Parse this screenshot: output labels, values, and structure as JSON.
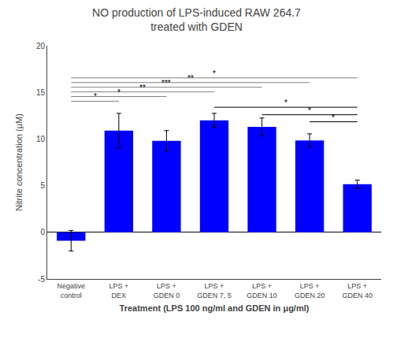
{
  "chart_data": {
    "type": "bar",
    "title": "NO production of LPS-induced RAW 264.7\ntreated with GDEN",
    "xlabel": "Treatment (LPS 100 ng/ml and GDEN in μg/ml)",
    "ylabel": "Nitrite concentration (μM)",
    "categories": [
      "Negative\ncontrol",
      "LPS +\nDEX",
      "LPS +\nGDEN 0",
      "LPS +\nGDEN 7, 5",
      "LPS +\nGDEN 10",
      "LPS +\nGDEN 20",
      "LPS +\nGDEN 40"
    ],
    "values": [
      -0.9,
      10.9,
      9.8,
      12.0,
      11.3,
      9.85,
      5.15
    ],
    "errors": [
      1.1,
      1.85,
      1.1,
      0.75,
      0.95,
      0.7,
      0.45
    ],
    "color": "#0000ff",
    "ylim": [
      -5,
      20
    ],
    "yticks": [
      -5,
      0,
      5,
      10,
      15,
      20
    ],
    "grid": false,
    "significance_lines": [
      {
        "x1": 0,
        "x2": 1,
        "y": 14.05,
        "label": "*",
        "color": "#808080"
      },
      {
        "x1": 0,
        "x2": 2,
        "y": 14.55,
        "label": "*",
        "color": "#808080"
      },
      {
        "x1": 0,
        "x2": 3,
        "y": 15.05,
        "label": "**",
        "color": "#808080"
      },
      {
        "x1": 0,
        "x2": 4,
        "y": 15.55,
        "label": "***",
        "color": "#808080"
      },
      {
        "x1": 0,
        "x2": 5,
        "y": 16.05,
        "label": "**",
        "color": "#808080"
      },
      {
        "x1": 0,
        "x2": 6,
        "y": 16.55,
        "label": "*",
        "color": "#808080"
      },
      {
        "x1": 3,
        "x2": 6,
        "y": 13.4,
        "label": "*",
        "color": "#000000"
      },
      {
        "x1": 4,
        "x2": 6,
        "y": 12.6,
        "label": "*",
        "color": "#000000"
      },
      {
        "x1": 5,
        "x2": 6,
        "y": 11.85,
        "label": "*",
        "color": "#000000"
      }
    ]
  }
}
